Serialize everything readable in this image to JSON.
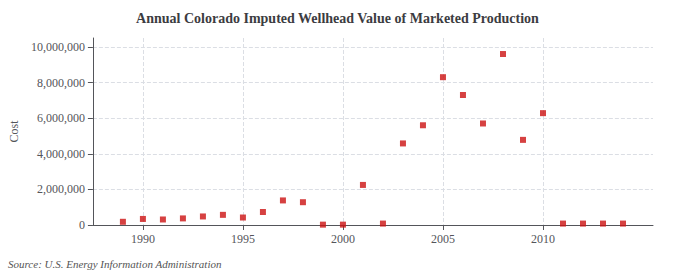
{
  "chart_data": {
    "type": "scatter",
    "title": "Annual Colorado Imputed Wellhead Value of Marketed Production",
    "ylabel": "Cost",
    "annotation": "Source: U.S. Energy Information Administration",
    "color": "#cc1111",
    "marker": "square",
    "grid": true,
    "x": [
      1989,
      1990,
      1991,
      1992,
      1993,
      1994,
      1995,
      1996,
      1997,
      1998,
      1999,
      2000,
      2001,
      2002,
      2003,
      2004,
      2005,
      2006,
      2007,
      2008,
      2009,
      2010,
      2011,
      2012,
      2013,
      2014
    ],
    "values": [
      180000,
      340000,
      310000,
      370000,
      480000,
      570000,
      420000,
      730000,
      1380000,
      1280000,
      20000,
      20000,
      2250000,
      80000,
      4580000,
      5600000,
      8300000,
      7300000,
      5700000,
      9600000,
      4780000,
      6280000,
      80000,
      80000,
      80000,
      80000
    ],
    "xlim": [
      1987.5,
      2015.5
    ],
    "xticks": [
      1990,
      1995,
      2000,
      2005,
      2010
    ],
    "ylim": [
      0,
      10500000
    ],
    "yticks": [
      0,
      {
        "value": 2000000,
        "label": "2,000,000"
      },
      {
        "value": 4000000,
        "label": "4,000,000"
      },
      {
        "value": 6000000,
        "label": "6,000,000"
      },
      {
        "value": 8000000,
        "label": "8,000,000"
      },
      {
        "value": 10000000,
        "label": "10,000,000"
      }
    ]
  }
}
